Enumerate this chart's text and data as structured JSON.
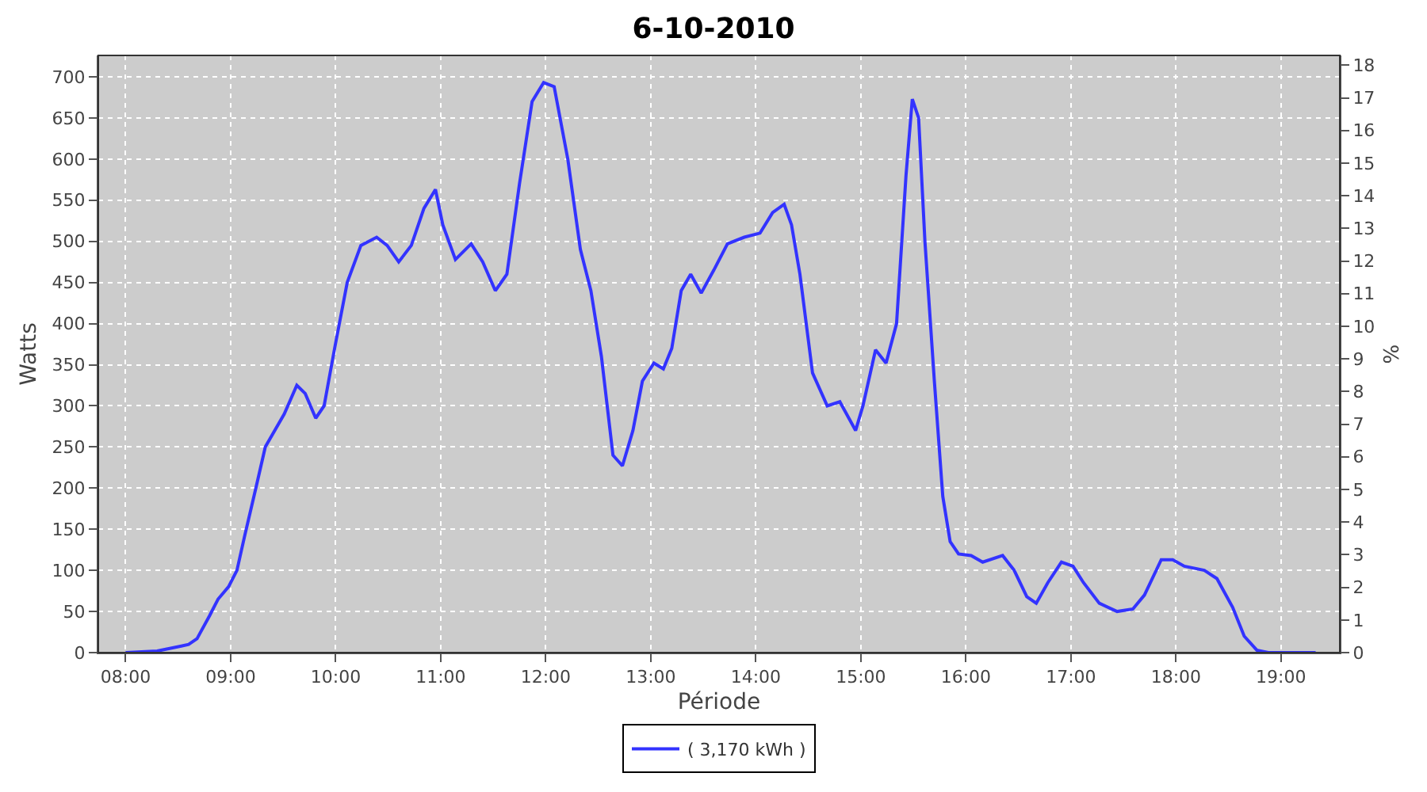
{
  "chart_data": {
    "type": "line",
    "title": "6-10-2010",
    "xlabel": "Période",
    "ylabel": "Watts",
    "y2label": "%",
    "x": [
      8.0,
      8.3,
      8.53,
      8.6,
      8.68,
      8.8,
      8.88,
      8.98,
      9.06,
      9.13,
      9.24,
      9.33,
      9.51,
      9.63,
      9.71,
      9.81,
      9.89,
      9.99,
      10.11,
      10.24,
      10.39,
      10.49,
      10.6,
      10.72,
      10.84,
      10.95,
      11.02,
      11.14,
      11.29,
      11.4,
      11.52,
      11.63,
      11.75,
      11.87,
      11.98,
      12.08,
      12.21,
      12.33,
      12.43,
      12.53,
      12.64,
      12.73,
      12.83,
      12.92,
      13.03,
      13.12,
      13.2,
      13.29,
      13.38,
      13.48,
      13.6,
      13.73,
      13.89,
      14.04,
      14.16,
      14.27,
      14.34,
      14.42,
      14.54,
      14.68,
      14.8,
      14.95,
      15.02,
      15.14,
      15.24,
      15.34,
      15.43,
      15.49,
      15.55,
      15.61,
      15.7,
      15.78,
      15.85,
      15.93,
      16.05,
      16.16,
      16.35,
      16.46,
      16.58,
      16.67,
      16.78,
      16.91,
      17.02,
      17.12,
      17.27,
      17.44,
      17.59,
      17.7,
      17.86,
      17.97,
      18.08,
      18.27,
      18.39,
      18.54,
      18.65,
      18.77,
      18.88,
      19.33
    ],
    "series": [
      {
        "name": "( 3,170 kWh )",
        "color": "#3333ff",
        "values": [
          0,
          2,
          8,
          10,
          17,
          45,
          65,
          80,
          100,
          140,
          200,
          250,
          290,
          325,
          315,
          285,
          300,
          370,
          450,
          495,
          505,
          495,
          475,
          495,
          540,
          563,
          520,
          478,
          497,
          475,
          440,
          460,
          570,
          670,
          693,
          688,
          600,
          490,
          440,
          360,
          240,
          227,
          270,
          330,
          352,
          345,
          370,
          440,
          460,
          437,
          465,
          497,
          505,
          510,
          535,
          545,
          520,
          460,
          340,
          300,
          305,
          270,
          300,
          368,
          352,
          400,
          580,
          673,
          650,
          500,
          330,
          190,
          135,
          120,
          118,
          110,
          118,
          100,
          68,
          60,
          85,
          110,
          105,
          85,
          60,
          50,
          53,
          70,
          113,
          113,
          105,
          100,
          90,
          55,
          20,
          3,
          0,
          0
        ]
      }
    ],
    "xlim": [
      7.74,
      19.56
    ],
    "xticks": [
      {
        "value": 8,
        "label": "08:00"
      },
      {
        "value": 9,
        "label": "09:00"
      },
      {
        "value": 10,
        "label": "10:00"
      },
      {
        "value": 11,
        "label": "11:00"
      },
      {
        "value": 12,
        "label": "12:00"
      },
      {
        "value": 13,
        "label": "13:00"
      },
      {
        "value": 14,
        "label": "14:00"
      },
      {
        "value": 15,
        "label": "15:00"
      },
      {
        "value": 16,
        "label": "16:00"
      },
      {
        "value": 17,
        "label": "17:00"
      },
      {
        "value": 18,
        "label": "18:00"
      },
      {
        "value": 19,
        "label": "19:00"
      }
    ],
    "ylim": [
      0,
      726
    ],
    "yticks": [
      0,
      50,
      100,
      150,
      200,
      250,
      300,
      350,
      400,
      450,
      500,
      550,
      600,
      650,
      700
    ],
    "y2lim": [
      0,
      18.3
    ],
    "y2ticks": [
      0,
      1,
      2,
      3,
      4,
      5,
      6,
      7,
      8,
      9,
      10,
      11,
      12,
      13,
      14,
      15,
      16,
      17,
      18
    ],
    "grid": true,
    "legend": "bottom",
    "marker": "none",
    "line_style": "solid"
  }
}
